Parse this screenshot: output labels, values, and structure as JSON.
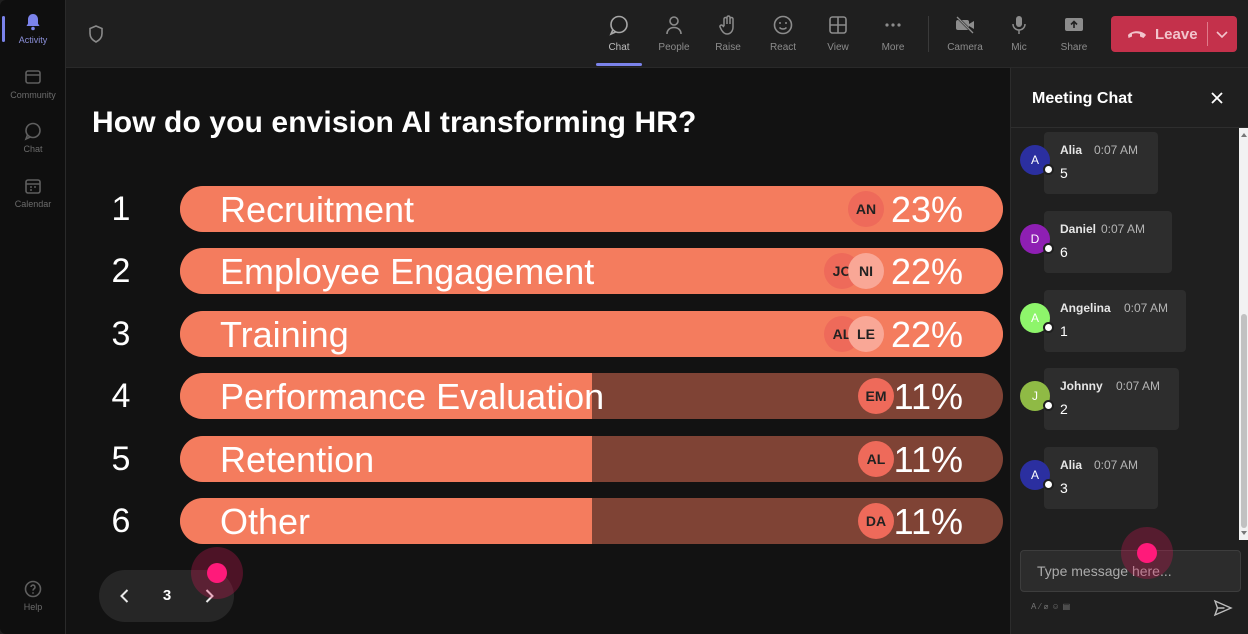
{
  "rail": {
    "items": [
      {
        "label": "Activity",
        "icon": "bell-icon"
      },
      {
        "label": "Community",
        "icon": "community-icon"
      },
      {
        "label": "Chat",
        "icon": "chat-icon"
      },
      {
        "label": "Calendar",
        "icon": "calendar-icon"
      },
      {
        "label": "Help",
        "icon": "help-icon"
      }
    ]
  },
  "toolbar": {
    "chat": "Chat",
    "people": "People",
    "raise": "Raise",
    "react": "React",
    "view": "View",
    "more": "More",
    "camera": "Camera",
    "mic": "Mic",
    "share": "Share",
    "leave": "Leave"
  },
  "poll": {
    "question": "How do you envision AI transforming HR?",
    "options": [
      {
        "num": "1",
        "label": "Recruitment",
        "pct": "23%",
        "fill": 1.0,
        "avatars": [
          "AN"
        ]
      },
      {
        "num": "2",
        "label": "Employee Engagement",
        "pct": "22%",
        "fill": 1.0,
        "avatars": [
          "JO",
          "NI"
        ]
      },
      {
        "num": "3",
        "label": "Training",
        "pct": "22%",
        "fill": 1.0,
        "avatars": [
          "AL",
          "LE"
        ]
      },
      {
        "num": "4",
        "label": "Performance Evaluation",
        "pct": "11%",
        "fill": 0.5,
        "avatars": [
          "EM"
        ]
      },
      {
        "num": "5",
        "label": "Retention",
        "pct": "11%",
        "fill": 0.5,
        "avatars": [
          "AL"
        ]
      },
      {
        "num": "6",
        "label": "Other",
        "pct": "11%",
        "fill": 0.5,
        "avatars": [
          "DA"
        ]
      }
    ],
    "colors": {
      "fill": "#f47c5e",
      "track": "#7f4335"
    }
  },
  "pager": {
    "page": "3"
  },
  "chat": {
    "title": "Meeting Chat",
    "messages": [
      {
        "initial": "A",
        "name": "Alia",
        "time": "0:07 AM",
        "text": "5",
        "color": "#2b2fa0"
      },
      {
        "initial": "D",
        "name": "Daniel",
        "time": "0:07 AM",
        "text": "6",
        "color": "#8e1fb3"
      },
      {
        "initial": "A",
        "name": "Angelina",
        "time": "0:07 AM",
        "text": "1",
        "color": "#8ef56b"
      },
      {
        "initial": "J",
        "name": "Johnny",
        "time": "0:07 AM",
        "text": "2",
        "color": "#8fba45"
      },
      {
        "initial": "A",
        "name": "Alia",
        "time": "0:07 AM",
        "text": "3",
        "color": "#2b2fa0"
      }
    ],
    "input_placeholder": "Type message here..."
  }
}
